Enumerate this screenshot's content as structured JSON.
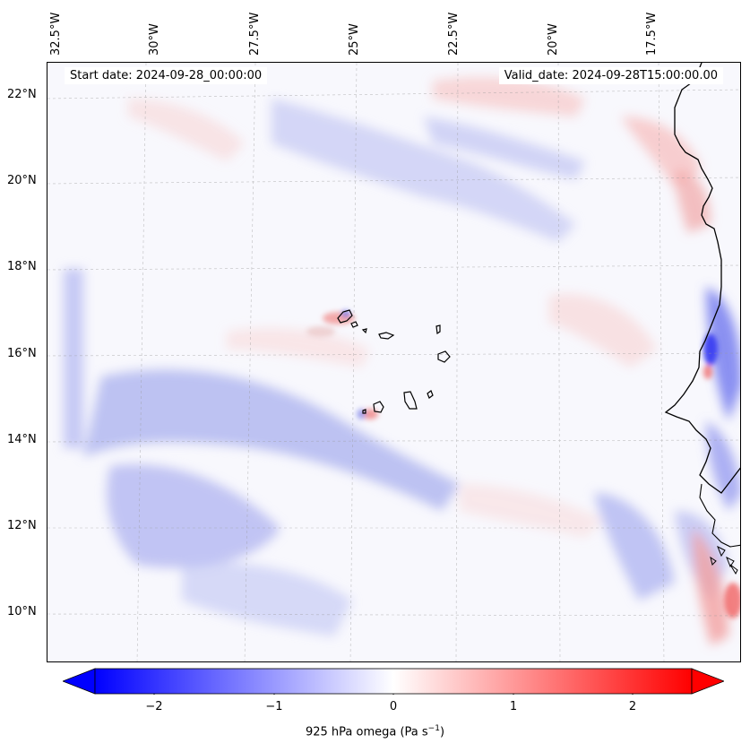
{
  "header": {
    "start_date": "Start date: 2024-09-28_00:00:00",
    "valid_date": "Valid_date: 2024-09-28T15:00:00.00"
  },
  "map": {
    "projection": "lat-lon",
    "lon_range_deg_west": [
      33.0,
      15.8
    ],
    "lat_range_deg_north": [
      8.8,
      22.8
    ],
    "gridlines": true,
    "lon_ticks": [
      "32.5°W",
      "30°W",
      "27.5°W",
      "25°W",
      "22.5°W",
      "20°W",
      "17.5°W"
    ],
    "lat_ticks": [
      "22°N",
      "20°N",
      "18°N",
      "16°N",
      "14°N",
      "12°N",
      "10°N"
    ],
    "features": [
      "Cape Verde islands",
      "West African coastline"
    ],
    "field": "925 hPa omega",
    "colormap": "bwr"
  },
  "colorbar": {
    "label_main": "925 hPa omega (Pa s",
    "label_exp": "−1",
    "label_close": ")",
    "range": [
      -2.6,
      2.6
    ],
    "ticks": [
      "−2",
      "−1",
      "0",
      "1",
      "2"
    ],
    "colors": {
      "min": "#0000ff",
      "mid": "#ffffff",
      "max": "#ff0000"
    }
  }
}
